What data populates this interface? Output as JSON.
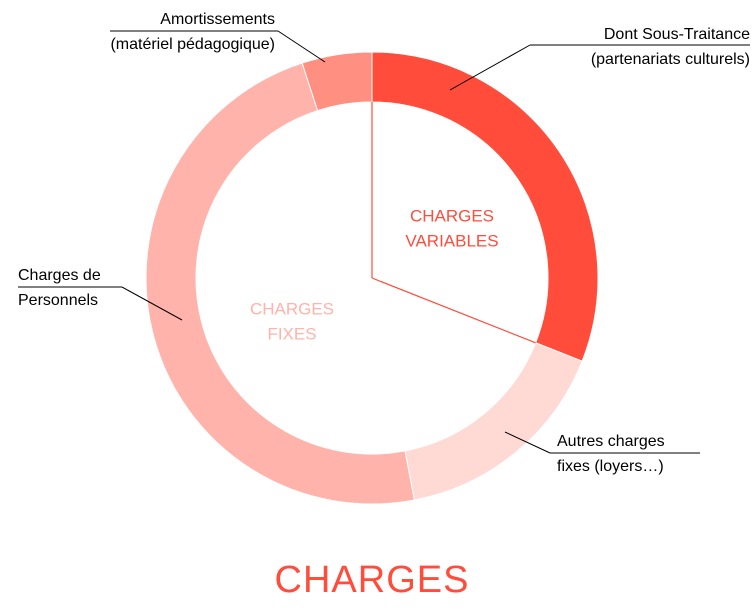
{
  "chart_data": {
    "type": "donut",
    "title": "CHARGES",
    "categories": [
      [
        "Dont Sous-Traitance",
        "(partenariats culturels)"
      ],
      [
        "Autres charges",
        "fixes (loyers…)"
      ],
      [
        "Charges de",
        "Personnels"
      ],
      [
        "Amortissements",
        "(matériel pédagogique)"
      ]
    ],
    "values": [
      31,
      16,
      48,
      5
    ],
    "colors": [
      "#ff4c3b",
      "#ffd9d3",
      "#ffb3aa",
      "#ff8f80"
    ],
    "annotations": [
      {
        "text": [
          "CHARGES",
          "VARIABLES"
        ],
        "color": "#ff4c3b"
      },
      {
        "text": [
          "CHARGES",
          "FIXES"
        ],
        "color": "#ffb3aa"
      }
    ]
  }
}
